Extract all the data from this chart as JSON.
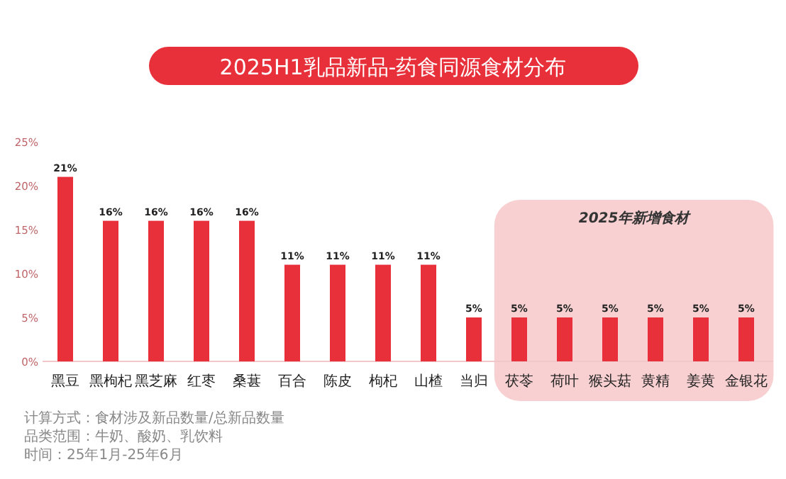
{
  "chart_data": {
    "type": "bar",
    "title": "2025H1乳品新品-药食同源食材分布",
    "categories": [
      "黑豆",
      "黑枸杞",
      "黑芝麻",
      "红枣",
      "桑葚",
      "百合",
      "陈皮",
      "枸杞",
      "山楂",
      "当归",
      "茯苓",
      "荷叶",
      "猴头菇",
      "黄精",
      "姜黄",
      "金银花"
    ],
    "values": [
      21,
      16,
      16,
      16,
      16,
      11,
      11,
      11,
      11,
      5,
      5,
      5,
      5,
      5,
      5,
      5
    ],
    "color": "#e8303a",
    "value_labels": [
      "21%",
      "16%",
      "16%",
      "16%",
      "16%",
      "11%",
      "11%",
      "11%",
      "11%",
      "5%",
      "5%",
      "5%",
      "5%",
      "5%",
      "5%",
      "5%"
    ],
    "ylim": [
      0,
      25
    ],
    "yticks": [
      {
        "value": 0,
        "label": "0%"
      },
      {
        "value": 5,
        "label": "5%"
      },
      {
        "value": 10,
        "label": "10%"
      },
      {
        "value": 15,
        "label": "15%"
      },
      {
        "value": 20,
        "label": "20%"
      },
      {
        "value": 25,
        "label": "25%"
      }
    ],
    "bands": [
      {
        "axis": "x",
        "from": "茯苓",
        "to": "金银花",
        "label": "2025年新增食材",
        "color": "#f8d0d2"
      }
    ],
    "annotations": [
      "计算方式：食材涉及新品数量/总新品数量",
      "品类范围：牛奶、酸奶、乳饮料",
      "时间：25年1月-25年6月"
    ]
  }
}
